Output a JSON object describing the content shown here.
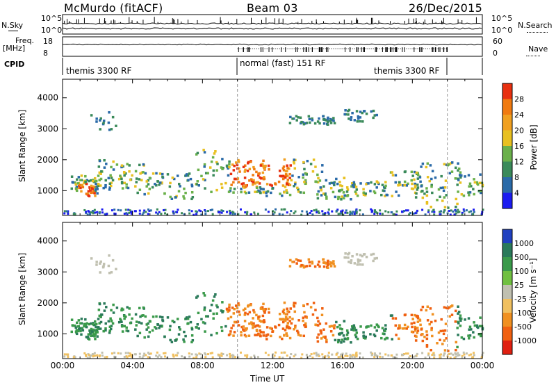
{
  "header": {
    "station": "McMurdo (fitACF)",
    "beam": "Beam 03",
    "date": "26/Dec/2015"
  },
  "summary": {
    "nsky_label": "N.Sky",
    "nsearch_label": "N.Search",
    "nsky_ticks": [
      "10^5",
      "10^0"
    ],
    "nsearch_ticks": [
      "10^5",
      "10^0"
    ],
    "freq_label_1": "Freq.",
    "freq_label_2": "[MHz]",
    "freq_ticks": [
      "18",
      "8"
    ],
    "nave_label": "Nave",
    "nave_ticks": [
      "60",
      "0"
    ],
    "cpid_label": "CPID",
    "cpid_segments": [
      {
        "label": "themis 3300 RF",
        "start": 0,
        "end": 10
      },
      {
        "label": "normal (fast) 151 RF",
        "start": 10,
        "end": 22
      },
      {
        "label": "themis 3300 RF",
        "start": 22,
        "end": 24
      }
    ]
  },
  "chart_data": [
    {
      "type": "heatmap",
      "name": "power",
      "ylabel": "Slant Range [km]",
      "xlabel": "",
      "x_ticks": [
        "00:00",
        "04:00",
        "08:00",
        "12:00",
        "16:00",
        "20:00",
        "00:00"
      ],
      "y_ticks": [
        "1000",
        "2000",
        "3000",
        "4000"
      ],
      "xlim": [
        0,
        24
      ],
      "ylim": [
        200,
        4600
      ],
      "colorbar_label": "Power [dB]",
      "colorbar_ticks": [
        "4",
        "8",
        "12",
        "16",
        "20",
        "24",
        "28"
      ],
      "colors": [
        "#1c1cf0",
        "#2a6aa8",
        "#3a8a5a",
        "#6ab04a",
        "#e8c020",
        "#f0a020",
        "#f07a10",
        "#e83010"
      ]
    },
    {
      "type": "heatmap",
      "name": "velocity",
      "ylabel": "Slant Range [km]",
      "xlabel": "Time UT",
      "x_ticks": [
        "00:00",
        "04:00",
        "08:00",
        "12:00",
        "16:00",
        "20:00",
        "00:00"
      ],
      "y_ticks": [
        "1000",
        "2000",
        "3000",
        "4000"
      ],
      "xlim": [
        0,
        24
      ],
      "ylim": [
        200,
        4600
      ],
      "colorbar_label": "Velocity [m s⁻¹]",
      "colorbar_ticks": [
        "1000",
        "500",
        "100",
        "25",
        "-25",
        "-100",
        "-500",
        "-1000"
      ],
      "colors": [
        "#2040c0",
        "#2a7a5a",
        "#3a9a4a",
        "#70c040",
        "#c0c0b0",
        "#f0c060",
        "#f09020",
        "#f06010",
        "#e02010"
      ]
    }
  ]
}
